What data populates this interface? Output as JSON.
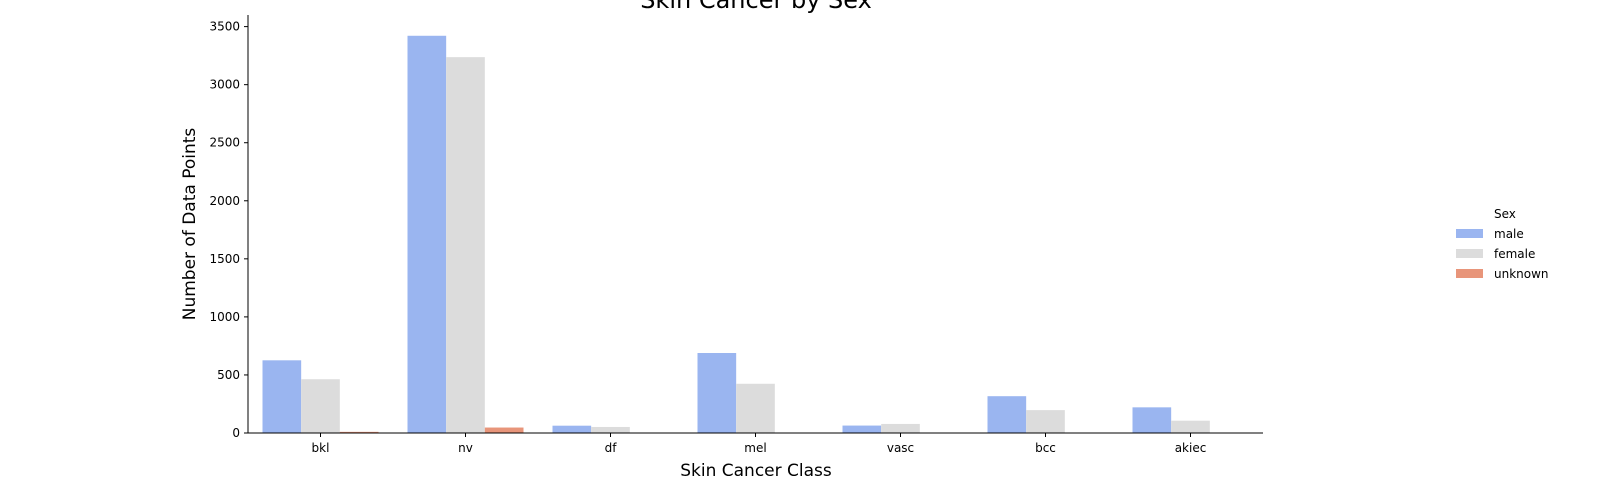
{
  "chart_data": {
    "type": "bar",
    "title": "Skin Cancer by Sex",
    "xlabel": "Skin Cancer Class",
    "ylabel": "Number of Data Points",
    "categories": [
      "bkl",
      "nv",
      "df",
      "mel",
      "vasc",
      "bcc",
      "akiec"
    ],
    "ylim": [
      0,
      3600
    ],
    "yticks": [
      0,
      500,
      1000,
      1500,
      2000,
      2500,
      3000,
      3500
    ],
    "series": [
      {
        "name": "male",
        "color": "#9ab5f0",
        "values": [
          626,
          3421,
          63,
          689,
          64,
          317,
          221
        ]
      },
      {
        "name": "female",
        "color": "#dcdcdc",
        "values": [
          463,
          3237,
          52,
          424,
          78,
          197,
          106
        ]
      },
      {
        "name": "unknown",
        "color": "#e8957a",
        "values": [
          10,
          47,
          0,
          0,
          0,
          0,
          0
        ]
      }
    ],
    "legend": {
      "title": "Sex",
      "position": "right"
    },
    "grid": false
  }
}
